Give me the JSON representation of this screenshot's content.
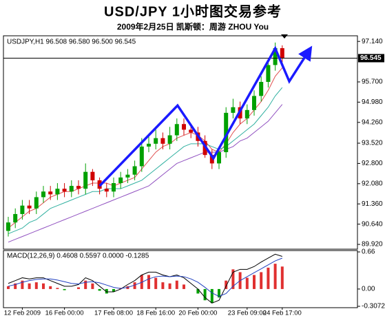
{
  "chart_data": [
    {
      "type": "candlestick",
      "title": "USD/JPY 1小时图交易参考",
      "subtitle": "2009年2月25日 凯斯顿：周游 ZHOU You",
      "header": "USDJPY,H1  96.508 96.580 96.500 96.545",
      "categories": [
        null,
        null,
        "12 Feb 2009",
        null,
        null,
        null,
        null,
        null,
        "16 Feb 00:00",
        null,
        null,
        null,
        null,
        null,
        null,
        "17 Feb 08:00",
        null,
        null,
        null,
        null,
        null,
        "18 Feb 16:00",
        null,
        null,
        null,
        null,
        null,
        "20 Feb 00:00",
        null,
        null,
        null,
        null,
        null,
        null,
        "23 Feb 09:00",
        null,
        null,
        null,
        null,
        "24 Feb 17:00"
      ],
      "open": [
        90.4,
        90.7,
        91.0,
        91.3,
        91.2,
        91.6,
        91.8,
        91.7,
        91.9,
        91.8,
        92.0,
        91.9,
        92.5,
        92.2,
        91.9,
        91.8,
        92.1,
        92.3,
        92.4,
        92.7,
        93.4,
        93.5,
        93.7,
        93.5,
        93.8,
        94.2,
        94.0,
        93.9,
        93.6,
        93.1,
        92.8,
        93.2,
        94.6,
        94.8,
        94.4,
        94.7,
        95.2,
        95.7,
        96.3,
        96.9
      ],
      "high": [
        90.9,
        91.2,
        91.5,
        91.5,
        91.8,
        92.0,
        92.0,
        92.1,
        92.1,
        92.2,
        92.2,
        92.8,
        92.6,
        92.3,
        92.1,
        92.3,
        92.5,
        92.6,
        92.9,
        93.7,
        93.8,
        94.0,
        93.9,
        94.1,
        94.4,
        94.4,
        94.2,
        94.1,
        93.8,
        93.3,
        93.4,
        94.8,
        95.1,
        95.0,
        94.9,
        95.4,
        95.9,
        96.5,
        97.1,
        97.0
      ],
      "low": [
        90.2,
        90.5,
        90.8,
        91.0,
        91.0,
        91.4,
        91.5,
        91.5,
        91.6,
        91.6,
        91.7,
        91.7,
        92.0,
        91.7,
        91.6,
        91.6,
        91.9,
        92.1,
        92.2,
        92.5,
        93.2,
        93.3,
        93.3,
        93.3,
        93.6,
        93.8,
        93.7,
        93.4,
        93.0,
        92.6,
        92.6,
        93.0,
        94.4,
        94.2,
        94.2,
        94.5,
        95.0,
        95.5,
        96.1,
        96.4
      ],
      "close": [
        90.7,
        91.0,
        91.3,
        91.2,
        91.6,
        91.8,
        91.7,
        91.9,
        91.8,
        92.0,
        91.9,
        92.5,
        92.2,
        91.9,
        91.8,
        92.1,
        92.3,
        92.4,
        92.7,
        93.4,
        93.5,
        93.7,
        93.5,
        93.8,
        94.2,
        94.0,
        93.9,
        93.6,
        93.1,
        92.8,
        93.2,
        94.6,
        94.8,
        94.4,
        94.7,
        95.2,
        95.7,
        96.3,
        96.9,
        96.545
      ],
      "up_color": "#00a000",
      "down_color": "#d00000",
      "ma": [
        {
          "color": "#e05050",
          "values": [
            90.5,
            90.7,
            90.9,
            91.1,
            91.2,
            91.4,
            91.6,
            91.7,
            91.8,
            91.8,
            91.9,
            92.0,
            92.1,
            92.1,
            92.1,
            92.0,
            92.1,
            92.2,
            92.3,
            92.6,
            92.9,
            93.2,
            93.4,
            93.5,
            93.7,
            93.8,
            93.9,
            93.8,
            93.6,
            93.3,
            93.2,
            93.5,
            93.9,
            94.2,
            94.4,
            94.7,
            95.0,
            95.4,
            95.9,
            96.2
          ]
        },
        {
          "color": "#30b0a0",
          "values": [
            90.3,
            90.4,
            90.5,
            90.7,
            90.8,
            91.0,
            91.2,
            91.3,
            91.4,
            91.5,
            91.6,
            91.7,
            91.8,
            91.8,
            91.9,
            91.9,
            91.9,
            92.0,
            92.1,
            92.2,
            92.4,
            92.6,
            92.8,
            93.0,
            93.2,
            93.4,
            93.5,
            93.5,
            93.5,
            93.4,
            93.3,
            93.4,
            93.6,
            93.8,
            94.0,
            94.2,
            94.5,
            94.8,
            95.2,
            95.5
          ]
        },
        {
          "color": "#9050c0",
          "values": [
            90.0,
            90.1,
            90.2,
            90.3,
            90.4,
            90.5,
            90.6,
            90.7,
            90.8,
            90.9,
            91.0,
            91.1,
            91.2,
            91.3,
            91.4,
            91.5,
            91.6,
            91.7,
            91.8,
            91.9,
            92.0,
            92.2,
            92.4,
            92.6,
            92.8,
            92.9,
            93.0,
            93.1,
            93.2,
            93.2,
            93.2,
            93.3,
            93.4,
            93.6,
            93.7,
            93.9,
            94.1,
            94.3,
            94.6,
            94.9
          ]
        }
      ],
      "last_price": 96.545,
      "annotation": {
        "color": "#1a1aff",
        "x": [
          13.0,
          24.1,
          29.2,
          38.0,
          40.0,
          42.7
        ],
        "y": [
          92.0,
          94.86,
          92.98,
          96.89,
          95.72,
          96.77
        ]
      },
      "ylim": [
        89.75,
        97.34
      ],
      "yticks": [
        {
          "value": 89.92,
          "label": "89.920"
        },
        {
          "value": 90.64,
          "label": "90.640"
        },
        {
          "value": 91.36,
          "label": "91.360"
        },
        {
          "value": 92.08,
          "label": "92.080"
        },
        {
          "value": 92.8,
          "label": "92.800"
        },
        {
          "value": 93.52,
          "label": "93.520"
        },
        {
          "value": 94.26,
          "label": "94.260"
        },
        {
          "value": 94.98,
          "label": "94.980"
        },
        {
          "value": 95.7,
          "label": "95.700"
        },
        {
          "value": 97.14,
          "label": "97.140"
        }
      ],
      "grid": false
    },
    {
      "type": "macd",
      "header": "MACD(12,26,9) 0.4608 0.5597 0.0000 -0.1285",
      "histogram": [
        0.05,
        0.1,
        0.15,
        0.1,
        0.12,
        0.1,
        0.05,
        0.02,
        -0.02,
        0.0,
        0.03,
        0.15,
        0.1,
        -0.03,
        -0.08,
        -0.05,
        0.02,
        0.05,
        0.12,
        0.25,
        0.25,
        0.2,
        0.12,
        0.1,
        0.15,
        0.08,
        0.0,
        -0.08,
        -0.2,
        -0.25,
        -0.15,
        0.15,
        0.35,
        0.3,
        0.2,
        0.25,
        0.3,
        0.38,
        0.45,
        0.4
      ],
      "up_color": "#e03030",
      "down_color": "#00a000",
      "series": [
        {
          "color": "#000000",
          "values": [
            0.1,
            0.15,
            0.2,
            0.18,
            0.2,
            0.2,
            0.15,
            0.1,
            0.05,
            0.05,
            0.08,
            0.2,
            0.15,
            0.05,
            -0.05,
            -0.05,
            0.0,
            0.08,
            0.15,
            0.25,
            0.3,
            0.3,
            0.25,
            0.22,
            0.25,
            0.2,
            0.1,
            0.0,
            -0.15,
            -0.25,
            -0.2,
            0.05,
            0.3,
            0.35,
            0.35,
            0.4,
            0.48,
            0.55,
            0.62,
            0.58
          ]
        },
        {
          "color": "#2040c0",
          "values": [
            0.05,
            0.08,
            0.12,
            0.15,
            0.17,
            0.18,
            0.18,
            0.16,
            0.13,
            0.1,
            0.09,
            0.12,
            0.13,
            0.11,
            0.07,
            0.03,
            0.01,
            0.03,
            0.07,
            0.12,
            0.18,
            0.22,
            0.23,
            0.22,
            0.23,
            0.22,
            0.18,
            0.12,
            0.03,
            -0.07,
            -0.13,
            -0.08,
            0.05,
            0.15,
            0.22,
            0.29,
            0.36,
            0.43,
            0.5,
            0.55
          ]
        }
      ],
      "ylim": [
        -0.3072,
        0.66
      ],
      "yticks": [
        -0.3072,
        {
          "value": 0,
          "label": "0.00"
        },
        0.66
      ]
    }
  ]
}
